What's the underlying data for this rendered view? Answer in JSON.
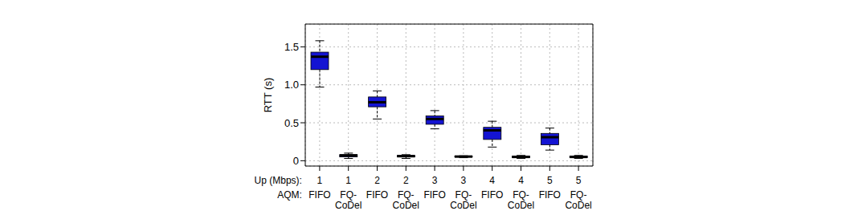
{
  "chart_data": {
    "type": "box",
    "y_label": "RTT (s)",
    "x_row_labels": [
      "Up (Mbps):",
      "AQM:"
    ],
    "categories": [
      "FIFO",
      "FQ-CoDel",
      "FIFO",
      "FQ-CoDel",
      "FIFO",
      "FQ-CoDel",
      "FIFO",
      "FQ-CoDel",
      "FIFO",
      "FQ-CoDel"
    ],
    "up_mbps": [
      1,
      1,
      2,
      2,
      3,
      3,
      4,
      4,
      5,
      5
    ],
    "whisker_low": [
      0.97,
      0.03,
      0.55,
      0.03,
      0.42,
      0.04,
      0.18,
      0.03,
      0.14,
      0.03
    ],
    "q1": [
      1.2,
      0.05,
      0.71,
      0.05,
      0.48,
      0.05,
      0.28,
      0.04,
      0.21,
      0.04
    ],
    "median": [
      1.37,
      0.07,
      0.77,
      0.06,
      0.55,
      0.055,
      0.4,
      0.05,
      0.31,
      0.05
    ],
    "q3": [
      1.43,
      0.08,
      0.84,
      0.07,
      0.59,
      0.06,
      0.44,
      0.06,
      0.36,
      0.06
    ],
    "whisker_high": [
      1.58,
      0.1,
      0.92,
      0.08,
      0.66,
      0.065,
      0.52,
      0.07,
      0.43,
      0.07
    ],
    "color": "#1414d2",
    "ylim": [
      -0.07,
      1.8
    ],
    "yticks": [
      0,
      0.5,
      {
        "value": 1,
        "label": "1.0"
      },
      1.5
    ],
    "grid": true
  }
}
